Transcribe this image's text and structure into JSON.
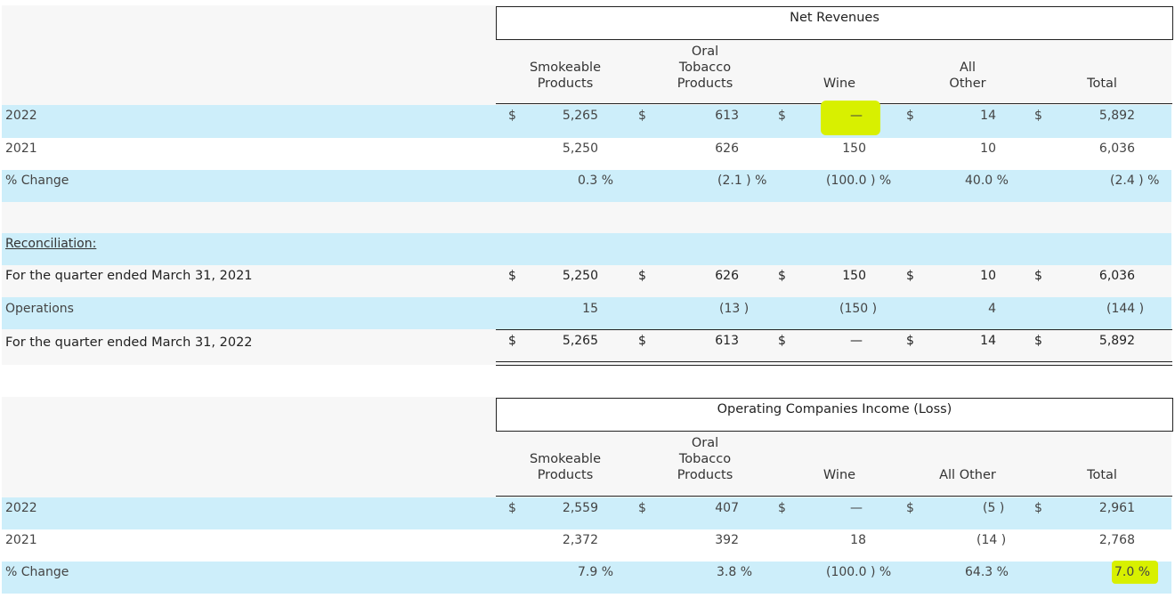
{
  "section1": {
    "title": "Net Revenues",
    "headers": [
      "Smokeable\nProducts",
      "Oral\nTobacco\nProducts",
      "Wine",
      "All\nOther",
      "Total"
    ],
    "rows": {
      "r2022": {
        "label": "2022",
        "c1": "$",
        "v1": "5,265",
        "c2": "$",
        "v2": "613",
        "c3": "$",
        "v3": "—",
        "c4": "$",
        "v4": "14",
        "c5": "$",
        "v5": "5,892"
      },
      "r2021": {
        "label": "2021",
        "v1": "5,250",
        "v2": "626",
        "v3": "150",
        "v4": "10",
        "v5": "6,036"
      },
      "change": {
        "label": "% Change",
        "v1": "0.3 %",
        "v2": "(2.1 ) %",
        "v3": "(100.0 ) %",
        "v4": "40.0 %",
        "v5": "(2.4 ) %"
      }
    }
  },
  "reconciliation": {
    "title": "Reconciliation:",
    "q2021": {
      "label": "For the quarter ended March 31, 2021",
      "c1": "$",
      "v1": "5,250",
      "c2": "$",
      "v2": "626",
      "c3": "$",
      "v3": "150",
      "c4": "$",
      "v4": "10",
      "c5": "$",
      "v5": "6,036"
    },
    "ops": {
      "label": "Operations",
      "v1": "15",
      "v2": "(13 )",
      "v3": "(150 )",
      "v4": "4",
      "v5": "(144 )"
    },
    "q2022": {
      "label": "For the quarter ended March 31, 2022",
      "c1": "$",
      "v1": "5,265",
      "c2": "$",
      "v2": "613",
      "c3": "$",
      "v3": "—",
      "c4": "$",
      "v4": "14",
      "c5": "$",
      "v5": "5,892"
    }
  },
  "section2": {
    "title": "Operating Companies Income (Loss)",
    "headers": [
      "Smokeable\nProducts",
      "Oral\nTobacco\nProducts",
      "Wine",
      "All Other",
      "Total"
    ],
    "rows": {
      "r2022": {
        "label": "2022",
        "c1": "$",
        "v1": "2,559",
        "c2": "$",
        "v2": "407",
        "c3": "$",
        "v3": "—",
        "c4": "$",
        "v4": "(5 )",
        "c5": "$",
        "v5": "2,961"
      },
      "r2021": {
        "label": "2021",
        "v1": "2,372",
        "v2": "392",
        "v3": "18",
        "v4": "(14 )",
        "v5": "2,768"
      },
      "change": {
        "label": "% Change",
        "v1": "7.9 %",
        "v2": "3.8 %",
        "v3": "(100.0 ) %",
        "v4": "64.3 %",
        "v5": "7.0 %"
      }
    }
  },
  "colors": {
    "row_blue": "#cdeefa",
    "highlight": "#d8f000"
  }
}
